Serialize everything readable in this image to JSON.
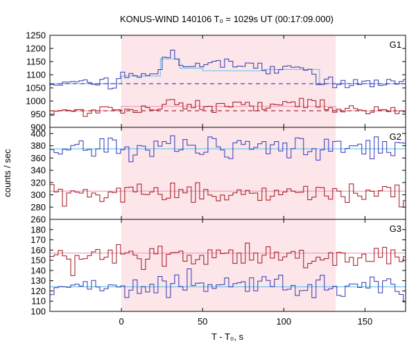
{
  "chart_data": {
    "type": "line",
    "title": "KONUS-WIND 140106 T₀ = 1029s UT (00:17:09.000)",
    "xlabel": "T - T₀, s",
    "ylabel": "counts / sec",
    "xlim": [
      -44,
      175
    ],
    "x_ticks": [
      0,
      50,
      100,
      150
    ],
    "highlight_interval": [
      0,
      132
    ],
    "colors": {
      "blue": "#2d35b4",
      "red": "#a01018",
      "cyan": "#6ec6ec",
      "pink": "#f0a0c0",
      "shade": "#fde6ea",
      "background": "#ffffff"
    },
    "panels": [
      {
        "label": "G1",
        "ylim": [
          900,
          1250
        ],
        "y_ticks": [
          900,
          950,
          1000,
          1050,
          1100,
          1150,
          1200,
          1250
        ],
        "blue_background": 1066,
        "red_background": 963,
        "blue_fit_steps": [
          {
            "x0": -44,
            "x1": 0,
            "y": 1066
          },
          {
            "x0": 0,
            "x1": 24,
            "y": 1095
          },
          {
            "x0": 24,
            "x1": 36,
            "y": 1160
          },
          {
            "x0": 36,
            "x1": 50,
            "y": 1125
          },
          {
            "x0": 50,
            "x1": 88,
            "y": 1115
          },
          {
            "x0": 88,
            "x1": 122,
            "y": 1120
          },
          {
            "x0": 122,
            "x1": 175,
            "y": 1066
          }
        ],
        "red_fit_steps": [
          {
            "x0": -44,
            "x1": 0,
            "y": 963
          },
          {
            "x0": 0,
            "x1": 132,
            "y": 980
          },
          {
            "x0": 132,
            "x1": 175,
            "y": 963
          }
        ],
        "blue_profile": [
          [
            -44,
            1068
          ],
          [
            -30,
            1066
          ],
          [
            -15,
            1068
          ],
          [
            -5,
            1064
          ],
          [
            0,
            1092
          ],
          [
            10,
            1098
          ],
          [
            20,
            1105
          ],
          [
            25,
            1140
          ],
          [
            28,
            1185
          ],
          [
            34,
            1160
          ],
          [
            40,
            1125
          ],
          [
            50,
            1140
          ],
          [
            70,
            1130
          ],
          [
            90,
            1125
          ],
          [
            110,
            1125
          ],
          [
            118,
            1112
          ],
          [
            122,
            1070
          ],
          [
            140,
            1066
          ],
          [
            175,
            1066
          ]
        ],
        "red_profile": [
          [
            -44,
            960
          ],
          [
            -10,
            964
          ],
          [
            0,
            968
          ],
          [
            20,
            982
          ],
          [
            35,
            995
          ],
          [
            50,
            982
          ],
          [
            80,
            978
          ],
          [
            100,
            982
          ],
          [
            115,
            990
          ],
          [
            125,
            978
          ],
          [
            132,
            965
          ],
          [
            175,
            962
          ]
        ],
        "blue_noise": 13,
        "red_noise": 11
      },
      {
        "label": "G2",
        "ylim": [
          260,
          410
        ],
        "y_ticks": [
          260,
          280,
          300,
          320,
          340,
          360,
          380,
          400
        ],
        "blue_fit_level": 375,
        "red_fit_level": 306,
        "blue_mean": 375,
        "red_mean": 304,
        "blue_noise": 10,
        "red_noise": 9
      },
      {
        "label": "G3",
        "ylim": [
          100,
          190
        ],
        "y_ticks": [
          100,
          110,
          120,
          130,
          140,
          150,
          160,
          170,
          180
        ],
        "blue_fit_level": 124,
        "red_fit_level": 157,
        "blue_mean": 124,
        "red_mean": 155,
        "blue_noise": 6,
        "red_noise": 7
      }
    ]
  }
}
